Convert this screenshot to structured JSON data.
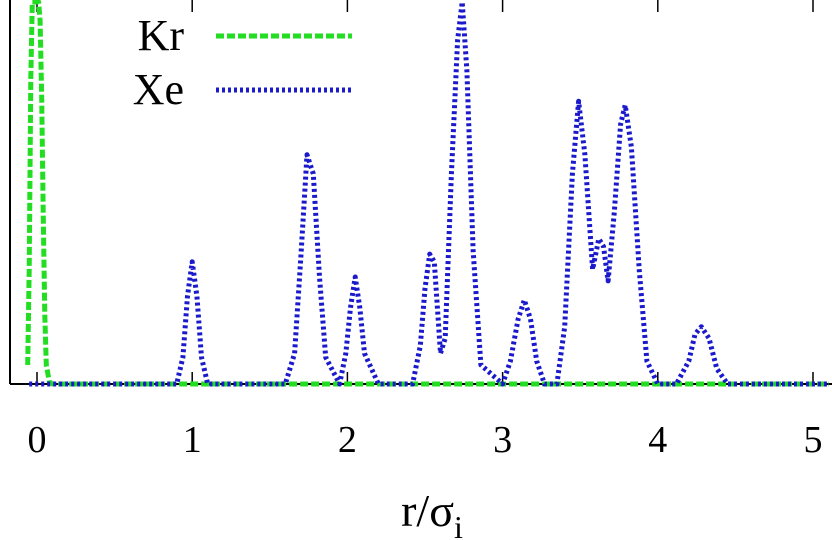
{
  "chart_data": {
    "type": "line",
    "title": "",
    "xlabel": "r/σ",
    "xlabel_subscript": "i",
    "ylabel": "",
    "xlim": [
      -0.2,
      5.1
    ],
    "ylim": [
      0,
      1.0
    ],
    "x_ticks": [
      "0",
      "1",
      "2",
      "3",
      "4",
      "5"
    ],
    "x_tick_values": [
      0,
      1,
      2,
      3,
      4,
      5
    ],
    "grid": false,
    "legend_position": "top-left",
    "series": [
      {
        "name": "Kr",
        "color": "#22dd22",
        "line_style": "dashed",
        "x": [
          -0.06,
          -0.05,
          -0.04,
          -0.03,
          -0.02,
          -0.01,
          0.0,
          0.01,
          0.02,
          0.03,
          0.04,
          0.05,
          0.06,
          0.08,
          0.1,
          0.5,
          1.0,
          2.0,
          3.0,
          4.0,
          5.0,
          5.1
        ],
        "y": [
          0.05,
          0.3,
          0.8,
          1.0,
          1.0,
          1.0,
          1.0,
          1.0,
          0.95,
          0.75,
          0.45,
          0.18,
          0.05,
          0.005,
          0.0,
          0.0,
          0.0,
          0.0,
          0.0,
          0.0,
          0.0,
          0.0
        ]
      },
      {
        "name": "Xe",
        "color": "#1a1acc",
        "line_style": "dotted",
        "x": [
          -0.05,
          0.0,
          0.5,
          0.9,
          0.94,
          0.97,
          1.0,
          1.03,
          1.06,
          1.1,
          1.6,
          1.66,
          1.7,
          1.74,
          1.78,
          1.82,
          1.86,
          1.95,
          1.99,
          2.02,
          2.05,
          2.08,
          2.11,
          2.2,
          2.42,
          2.47,
          2.5,
          2.53,
          2.56,
          2.6,
          2.63,
          2.67,
          2.71,
          2.74,
          2.77,
          2.81,
          2.86,
          3.0,
          3.05,
          3.1,
          3.14,
          3.18,
          3.22,
          3.27,
          3.35,
          3.4,
          3.45,
          3.49,
          3.53,
          3.58,
          3.62,
          3.65,
          3.68,
          3.72,
          3.76,
          3.79,
          3.83,
          3.88,
          3.93,
          4.0,
          4.12,
          4.2,
          4.24,
          4.28,
          4.33,
          4.38,
          4.45,
          4.6,
          5.1
        ],
        "y": [
          0.0,
          0.0,
          0.0,
          0.0,
          0.07,
          0.23,
          0.32,
          0.23,
          0.07,
          0.0,
          0.0,
          0.08,
          0.33,
          0.6,
          0.55,
          0.28,
          0.07,
          0.0,
          0.08,
          0.2,
          0.28,
          0.2,
          0.08,
          0.0,
          0.0,
          0.1,
          0.25,
          0.34,
          0.32,
          0.08,
          0.12,
          0.55,
          0.9,
          1.0,
          0.82,
          0.35,
          0.05,
          0.0,
          0.06,
          0.17,
          0.22,
          0.17,
          0.06,
          0.0,
          0.0,
          0.15,
          0.55,
          0.74,
          0.6,
          0.3,
          0.38,
          0.36,
          0.27,
          0.45,
          0.68,
          0.73,
          0.62,
          0.3,
          0.06,
          0.0,
          0.0,
          0.06,
          0.13,
          0.15,
          0.12,
          0.04,
          0.0,
          0.0,
          0.0
        ]
      }
    ]
  }
}
